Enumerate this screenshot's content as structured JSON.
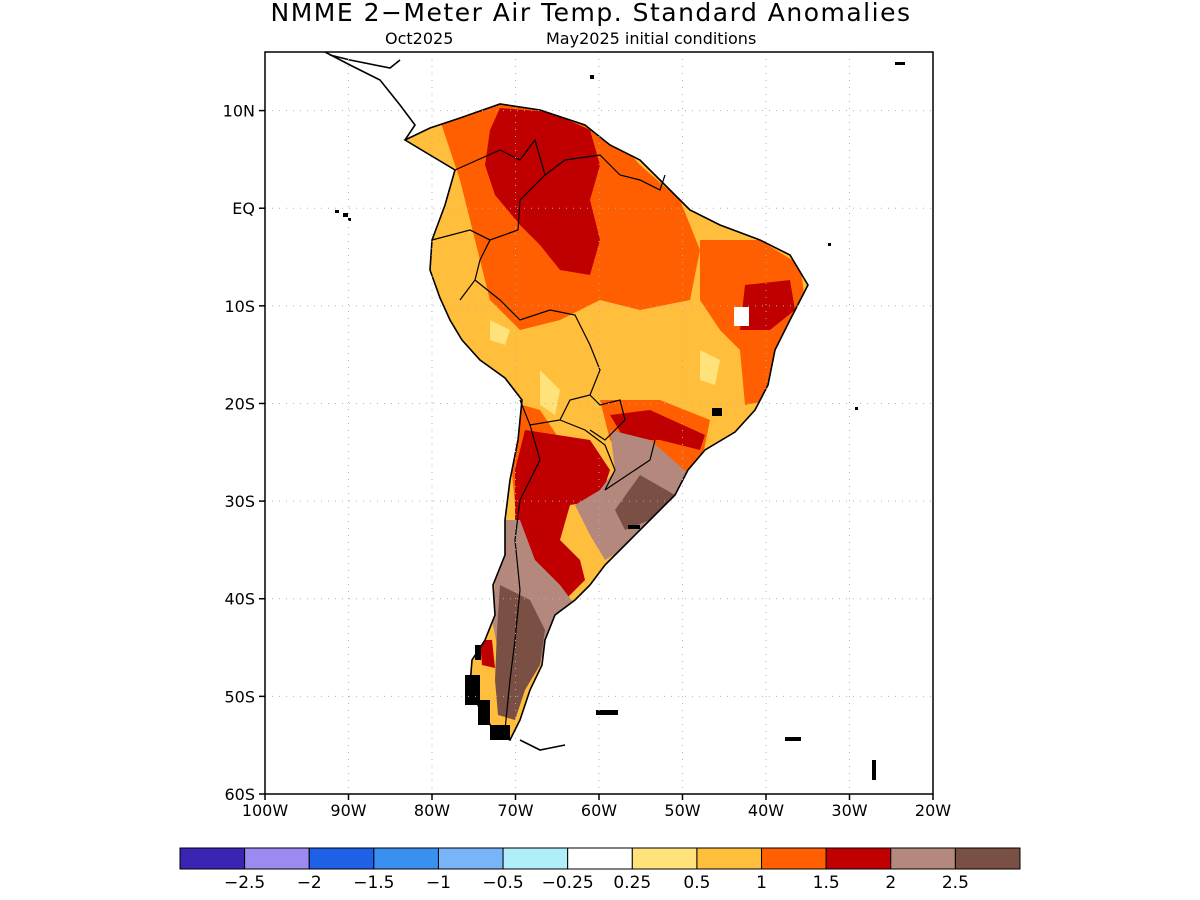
{
  "title": "NMME 2−Meter Air Temp. Standard Anomalies",
  "subtitle_left": "Oct2025",
  "subtitle_right": "May2025 initial conditions",
  "map": {
    "lat_ticks": [
      {
        "lat": 10,
        "label": "10N"
      },
      {
        "lat": 0,
        "label": "EQ"
      },
      {
        "lat": -10,
        "label": "10S"
      },
      {
        "lat": -20,
        "label": "20S"
      },
      {
        "lat": -30,
        "label": "30S"
      },
      {
        "lat": -40,
        "label": "40S"
      },
      {
        "lat": -50,
        "label": "50S"
      },
      {
        "lat": -60,
        "label": "60S"
      }
    ],
    "lon_ticks": [
      {
        "lon": -100,
        "label": "100W"
      },
      {
        "lon": -90,
        "label": "90W"
      },
      {
        "lon": -80,
        "label": "80W"
      },
      {
        "lon": -70,
        "label": "70W"
      },
      {
        "lon": -60,
        "label": "60W"
      },
      {
        "lon": -50,
        "label": "50W"
      },
      {
        "lon": -40,
        "label": "40W"
      },
      {
        "lon": -30,
        "label": "30W"
      },
      {
        "lon": -20,
        "label": "20W"
      }
    ],
    "lon_range": [
      -100,
      -20
    ],
    "lat_range": [
      -60,
      16
    ]
  },
  "colorbar": {
    "colors": [
      "#3a24b4",
      "#9c8af0",
      "#1f61e6",
      "#3a90f0",
      "#78b4f8",
      "#b0eefa",
      "#ffffff",
      "#ffe27a",
      "#ffbe3c",
      "#ff5f00",
      "#c00000",
      "#b4887c",
      "#7a5044"
    ],
    "labels": [
      "−2.5",
      "−2",
      "−1.5",
      "−1",
      "−0.5",
      "−0.25",
      "0.25",
      "0.5",
      "1",
      "1.5",
      "2",
      "2.5"
    ]
  }
}
